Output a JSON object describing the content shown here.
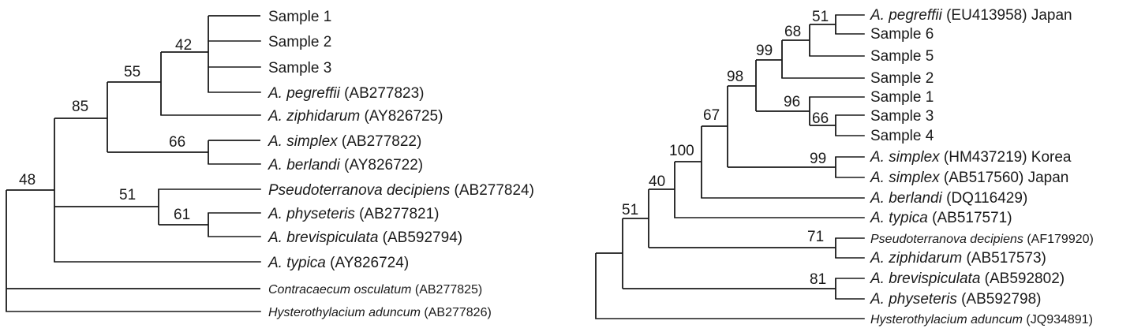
{
  "left_tree": {
    "leaves": [
      {
        "name": "Sample 1",
        "accession": ""
      },
      {
        "name": "Sample 2",
        "accession": ""
      },
      {
        "name": "Sample 3",
        "accession": ""
      },
      {
        "name": "A. pegreffii",
        "accession": " (AB277823)"
      },
      {
        "name": "A. ziphidarum",
        "accession": " (AY826725)"
      },
      {
        "name": "A. simplex",
        "accession": " (AB277822)"
      },
      {
        "name": "A. berlandi",
        "accession": " (AY826722)"
      },
      {
        "name": "Pseudoterranova decipiens",
        "accession": " (AB277824)"
      },
      {
        "name": "A. physeteris",
        "accession": " (AB277821)"
      },
      {
        "name": "A. brevispiculata",
        "accession": " (AB592794)"
      },
      {
        "name": "A. typica",
        "accession": " (AY826724)"
      },
      {
        "name": "Contracaecum osculatum",
        "accession": " (AB277825)"
      },
      {
        "name": "Hysterothylacium aduncum",
        "accession": " (AB277826)"
      }
    ],
    "support": {
      "n42": "42",
      "n55": "55",
      "n85": "85",
      "n66": "66",
      "n51": "51",
      "n61": "61",
      "n48": "48"
    }
  },
  "right_tree": {
    "leaves": [
      {
        "name": "A. pegreffii",
        "accession": " (EU413958) Japan"
      },
      {
        "name": "Sample 6",
        "accession": ""
      },
      {
        "name": "Sample 5",
        "accession": ""
      },
      {
        "name": "Sample 2",
        "accession": ""
      },
      {
        "name": "Sample 1",
        "accession": ""
      },
      {
        "name": "Sample 3",
        "accession": ""
      },
      {
        "name": "Sample 4",
        "accession": ""
      },
      {
        "name": "A. simplex",
        "accession": " (HM437219) Korea"
      },
      {
        "name": "A. simplex",
        "accession": " (AB517560) Japan"
      },
      {
        "name": "A. berlandi",
        "accession": " (DQ116429)"
      },
      {
        "name": "A. typica",
        "accession": " (AB517571)"
      },
      {
        "name": "Pseudoterranova decipiens",
        "accession": " (AF179920)"
      },
      {
        "name": "A. ziphidarum",
        "accession": " (AB517573)"
      },
      {
        "name": "A. brevispiculata",
        "accession": " (AB592802)"
      },
      {
        "name": "A. physeteris",
        "accession": " (AB592798)"
      },
      {
        "name": "Hysterothylacium aduncum",
        "accession": " (JQ934891)"
      }
    ],
    "support": {
      "n51": "51",
      "n68": "68",
      "n99a": "99",
      "n98": "98",
      "n96": "96",
      "n66": "66",
      "n99b": "99",
      "n67": "67",
      "n100": "100",
      "n40": "40",
      "n71": "71",
      "n81": "81",
      "n51root": "51"
    }
  }
}
